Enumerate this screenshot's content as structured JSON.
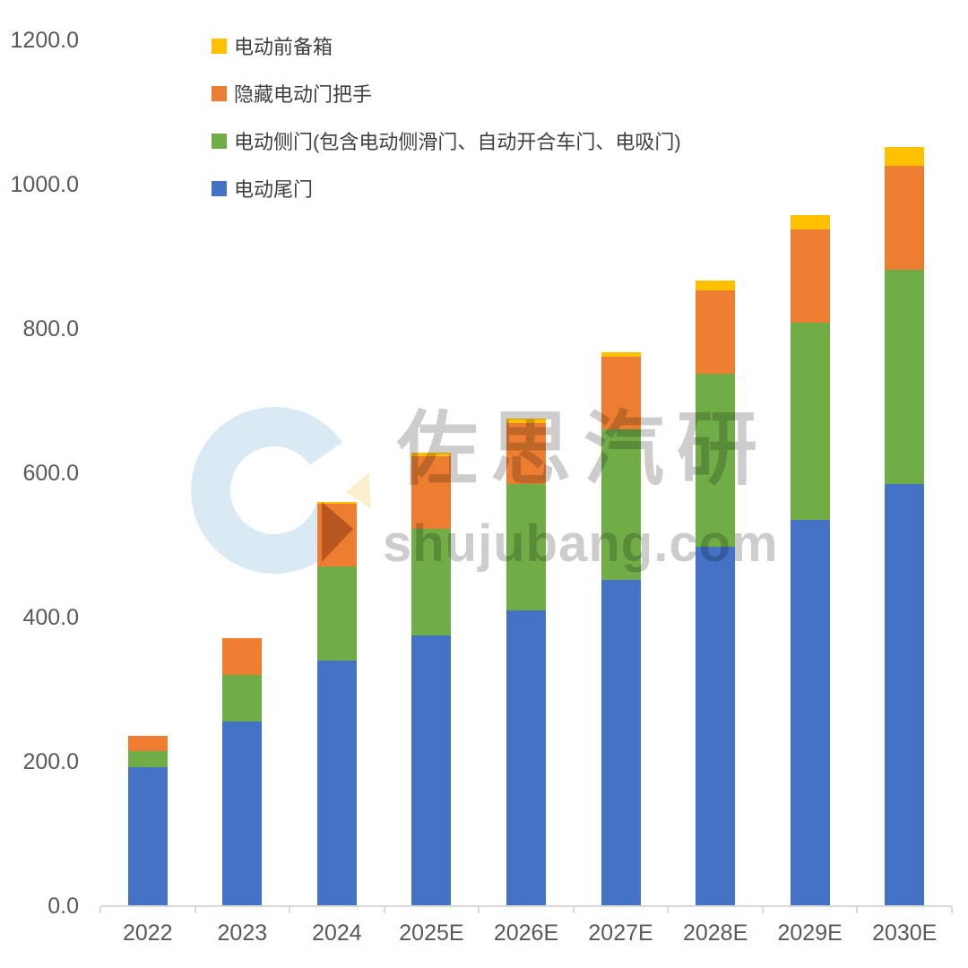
{
  "colors": {
    "blue": "#4472C4",
    "green": "#70AD47",
    "orange": "#ED7D31",
    "yellow": "#FFC000",
    "axis_line": "#D9D9D9",
    "axis_label": "#595959",
    "legend_text": "#3F3F3F",
    "watermark_ring": "#D9EAF5",
    "watermark_arrow": "#FAF0CD",
    "watermark_text": "#CDCDCD"
  },
  "watermark": {
    "brand_text": "佐思汽研",
    "site_text": "shujubang.com"
  },
  "legend": [
    {
      "label": "电动前备箱",
      "color_key": "yellow"
    },
    {
      "label": "隐藏电动门把手",
      "color_key": "orange"
    },
    {
      "label": "电动侧门(包含电动侧滑门、自动开合车门、电吸门)",
      "color_key": "green"
    },
    {
      "label": "电动尾门",
      "color_key": "blue"
    }
  ],
  "chart_data": {
    "type": "bar",
    "stacked": true,
    "title": "",
    "xlabel": "",
    "ylabel": "",
    "categories": [
      "2022",
      "2023",
      "2024",
      "2025E",
      "2026E",
      "2027E",
      "2028E",
      "2029E",
      "2030E"
    ],
    "series": [
      {
        "name": "电动尾门",
        "color_key": "blue",
        "values": [
          193,
          256,
          340,
          375,
          410,
          452,
          498,
          536,
          585
        ]
      },
      {
        "name": "电动侧门(包含电动侧滑门、自动开合车门、电吸门)",
        "color_key": "green",
        "values": [
          22,
          65,
          131,
          148,
          175,
          209,
          240,
          273,
          297
        ]
      },
      {
        "name": "隐藏电动门把手",
        "color_key": "orange",
        "values": [
          21,
          51,
          87,
          101,
          85,
          100,
          115,
          129,
          144
        ]
      },
      {
        "name": "电动前备箱",
        "color_key": "yellow",
        "values": [
          0,
          0,
          2,
          4,
          6,
          7,
          14,
          20,
          26
        ]
      }
    ],
    "totals": [
      236,
      372,
      560,
      628,
      676,
      768,
      867,
      958,
      1052
    ],
    "ylim": [
      0,
      1200
    ],
    "ytick_step": 200,
    "ytick_labels": [
      "0.0",
      "200.0",
      "400.0",
      "600.0",
      "800.0",
      "1000.0",
      "1200.0"
    ],
    "grid": false,
    "legend_position": "top-left"
  }
}
